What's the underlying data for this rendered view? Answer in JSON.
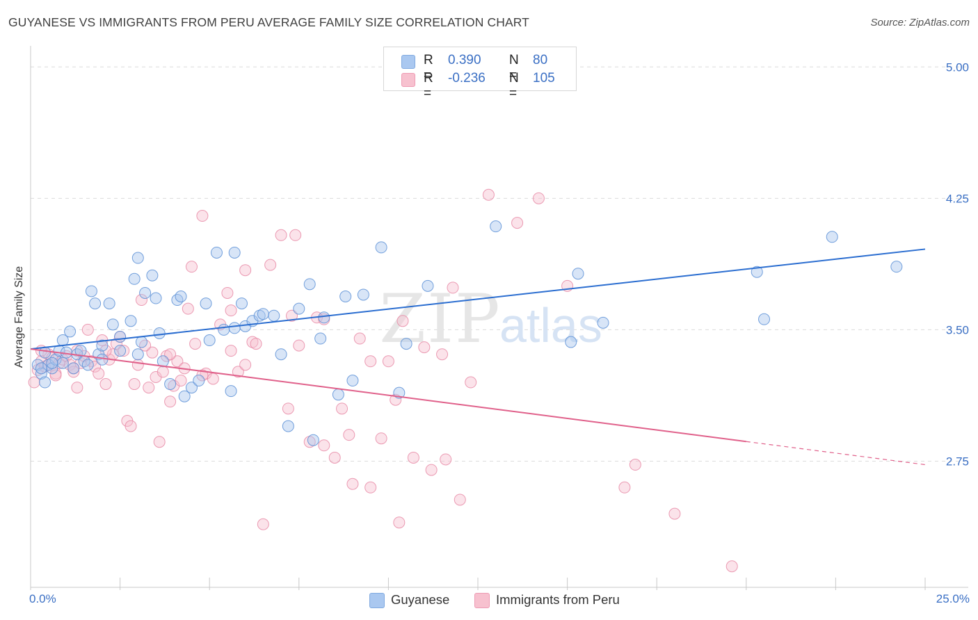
{
  "header": {
    "title": "GUYANESE VS IMMIGRANTS FROM PERU AVERAGE FAMILY SIZE CORRELATION CHART",
    "source": "Source: ZipAtlas.com"
  },
  "watermark": {
    "zip": "ZIP",
    "atlas": "atlas"
  },
  "legend": {
    "r_label": "R =",
    "n_label": "N =",
    "rows": [
      {
        "r": "0.390",
        "n": "80",
        "fill": "#aac8f0",
        "stroke": "#7fa9e0"
      },
      {
        "r": "-0.236",
        "n": "105",
        "fill": "#f7c1cf",
        "stroke": "#ee9ab3"
      }
    ]
  },
  "colors": {
    "blue": "#5b8fd6",
    "blue_fill": "#a9c6ee",
    "blue_line": "#2a6dd0",
    "pink": "#e88aa6",
    "pink_fill": "#f6c1d0",
    "pink_line": "#e0608a",
    "value_text": "#3a6fc4",
    "grid": "#dcdcdc"
  },
  "chart_data": {
    "type": "scatter",
    "title": "GUYANESE VS IMMIGRANTS FROM PERU AVERAGE FAMILY SIZE CORRELATION CHART",
    "ylabel": "Average Family Size",
    "xlabel": "",
    "xlim": [
      0,
      25
    ],
    "ylim": [
      2.03,
      5.12
    ],
    "x_tick_labels": [
      "0.0%",
      "25.0%"
    ],
    "y_ticks": [
      2.75,
      3.5,
      4.25,
      5.0
    ],
    "y_tick_labels": [
      "2.75",
      "3.50",
      "4.25",
      "5.00"
    ],
    "grid": true,
    "legend_position": "top-center",
    "series": [
      {
        "name": "Guyanese",
        "color": "#5b8fd6",
        "r": 0.39,
        "n": 80,
        "trend": {
          "x": [
            0,
            25
          ],
          "y": [
            3.39,
            3.96
          ]
        },
        "points": [
          [
            0.2,
            3.3
          ],
          [
            0.3,
            3.25
          ],
          [
            0.4,
            3.37
          ],
          [
            0.5,
            3.3
          ],
          [
            0.6,
            3.28
          ],
          [
            0.7,
            3.33
          ],
          [
            0.8,
            3.38
          ],
          [
            0.9,
            3.44
          ],
          [
            1.0,
            3.37
          ],
          [
            1.1,
            3.49
          ],
          [
            1.3,
            3.36
          ],
          [
            1.4,
            3.38
          ],
          [
            1.5,
            3.32
          ],
          [
            1.6,
            3.3
          ],
          [
            1.7,
            3.72
          ],
          [
            1.8,
            3.65
          ],
          [
            1.9,
            3.36
          ],
          [
            2.0,
            3.41
          ],
          [
            2.2,
            3.65
          ],
          [
            2.3,
            3.53
          ],
          [
            2.5,
            3.38
          ],
          [
            2.5,
            3.46
          ],
          [
            2.8,
            3.55
          ],
          [
            2.9,
            3.79
          ],
          [
            3.0,
            3.91
          ],
          [
            3.1,
            3.43
          ],
          [
            3.2,
            3.71
          ],
          [
            3.4,
            3.81
          ],
          [
            3.5,
            3.68
          ],
          [
            3.6,
            3.48
          ],
          [
            3.7,
            3.32
          ],
          [
            3.9,
            3.19
          ],
          [
            4.1,
            3.67
          ],
          [
            4.2,
            3.69
          ],
          [
            4.3,
            3.12
          ],
          [
            4.5,
            3.17
          ],
          [
            4.7,
            3.21
          ],
          [
            4.9,
            3.65
          ],
          [
            5.0,
            3.44
          ],
          [
            5.2,
            3.94
          ],
          [
            5.4,
            3.5
          ],
          [
            5.6,
            3.15
          ],
          [
            5.7,
            3.94
          ],
          [
            5.9,
            3.65
          ],
          [
            6.0,
            3.52
          ],
          [
            6.2,
            3.55
          ],
          [
            6.4,
            3.58
          ],
          [
            6.8,
            3.58
          ],
          [
            7.0,
            3.36
          ],
          [
            7.2,
            2.95
          ],
          [
            7.5,
            3.62
          ],
          [
            7.8,
            3.76
          ],
          [
            7.9,
            2.87
          ],
          [
            8.1,
            3.45
          ],
          [
            8.2,
            3.57
          ],
          [
            8.6,
            3.13
          ],
          [
            8.8,
            3.69
          ],
          [
            9.0,
            3.21
          ],
          [
            9.3,
            3.7
          ],
          [
            9.8,
            3.97
          ],
          [
            10.3,
            3.14
          ],
          [
            10.5,
            3.42
          ],
          [
            11.1,
            3.75
          ],
          [
            13.0,
            4.09
          ],
          [
            15.1,
            3.43
          ],
          [
            15.3,
            3.82
          ],
          [
            16.0,
            3.54
          ],
          [
            20.3,
            3.83
          ],
          [
            20.5,
            3.56
          ],
          [
            22.4,
            4.03
          ],
          [
            24.2,
            3.86
          ],
          [
            0.4,
            3.2
          ],
          [
            0.9,
            3.31
          ],
          [
            2.0,
            3.33
          ],
          [
            3.0,
            3.36
          ],
          [
            5.7,
            3.51
          ],
          [
            6.5,
            3.59
          ],
          [
            1.2,
            3.28
          ],
          [
            0.6,
            3.31
          ],
          [
            0.3,
            3.28
          ]
        ]
      },
      {
        "name": "Immigrants from Peru",
        "color": "#e88aa6",
        "r": -0.236,
        "n": 105,
        "trend": {
          "x": [
            0,
            25
          ],
          "y": [
            3.39,
            2.73
          ]
        },
        "points": [
          [
            0.1,
            3.2
          ],
          [
            0.2,
            3.27
          ],
          [
            0.3,
            3.32
          ],
          [
            0.4,
            3.29
          ],
          [
            0.5,
            3.36
          ],
          [
            0.6,
            3.34
          ],
          [
            0.7,
            3.25
          ],
          [
            0.8,
            3.31
          ],
          [
            0.9,
            3.33
          ],
          [
            1.0,
            3.35
          ],
          [
            1.1,
            3.3
          ],
          [
            1.2,
            3.26
          ],
          [
            1.3,
            3.38
          ],
          [
            1.4,
            3.31
          ],
          [
            1.5,
            3.35
          ],
          [
            1.6,
            3.5
          ],
          [
            1.7,
            3.32
          ],
          [
            1.8,
            3.29
          ],
          [
            1.9,
            3.25
          ],
          [
            2.0,
            3.44
          ],
          [
            2.1,
            3.19
          ],
          [
            2.2,
            3.33
          ],
          [
            2.3,
            3.36
          ],
          [
            2.4,
            3.42
          ],
          [
            2.6,
            3.38
          ],
          [
            2.7,
            2.98
          ],
          [
            2.8,
            2.95
          ],
          [
            2.9,
            3.19
          ],
          [
            3.0,
            3.3
          ],
          [
            3.1,
            3.67
          ],
          [
            3.3,
            3.17
          ],
          [
            3.4,
            3.37
          ],
          [
            3.5,
            3.23
          ],
          [
            3.6,
            2.86
          ],
          [
            3.7,
            3.26
          ],
          [
            3.8,
            3.35
          ],
          [
            3.9,
            3.09
          ],
          [
            4.0,
            3.18
          ],
          [
            4.1,
            3.32
          ],
          [
            4.2,
            3.21
          ],
          [
            4.3,
            3.28
          ],
          [
            4.4,
            3.62
          ],
          [
            4.5,
            3.86
          ],
          [
            4.6,
            3.42
          ],
          [
            4.8,
            4.15
          ],
          [
            4.9,
            3.25
          ],
          [
            5.1,
            3.22
          ],
          [
            5.3,
            3.53
          ],
          [
            5.5,
            3.71
          ],
          [
            5.6,
            3.38
          ],
          [
            5.8,
            3.26
          ],
          [
            6.0,
            3.3
          ],
          [
            6.2,
            3.43
          ],
          [
            6.3,
            3.42
          ],
          [
            6.5,
            2.39
          ],
          [
            6.7,
            3.87
          ],
          [
            7.0,
            4.04
          ],
          [
            7.2,
            3.05
          ],
          [
            7.4,
            4.04
          ],
          [
            7.5,
            3.41
          ],
          [
            7.8,
            2.86
          ],
          [
            8.0,
            3.57
          ],
          [
            8.2,
            3.56
          ],
          [
            8.5,
            2.77
          ],
          [
            8.7,
            3.05
          ],
          [
            8.9,
            2.9
          ],
          [
            9.0,
            2.62
          ],
          [
            9.2,
            3.45
          ],
          [
            9.5,
            2.6
          ],
          [
            9.8,
            2.88
          ],
          [
            10.0,
            3.32
          ],
          [
            10.2,
            3.1
          ],
          [
            10.4,
            3.55
          ],
          [
            10.7,
            2.77
          ],
          [
            11.0,
            3.4
          ],
          [
            11.2,
            2.7
          ],
          [
            11.5,
            3.36
          ],
          [
            11.8,
            3.74
          ],
          [
            12.0,
            2.53
          ],
          [
            12.3,
            3.2
          ],
          [
            12.8,
            4.27
          ],
          [
            13.6,
            4.11
          ],
          [
            14.2,
            4.25
          ],
          [
            15.0,
            3.75
          ],
          [
            16.6,
            2.6
          ],
          [
            16.9,
            2.73
          ],
          [
            18.0,
            2.45
          ],
          [
            19.6,
            2.15
          ],
          [
            10.3,
            2.4
          ],
          [
            9.5,
            3.32
          ],
          [
            7.3,
            3.58
          ],
          [
            6.0,
            3.84
          ],
          [
            4.8,
            3.24
          ],
          [
            3.9,
            3.36
          ],
          [
            2.5,
            3.46
          ],
          [
            1.3,
            3.17
          ],
          [
            0.7,
            3.24
          ],
          [
            0.3,
            3.38
          ],
          [
            11.6,
            2.76
          ],
          [
            8.2,
            2.84
          ],
          [
            5.6,
            3.61
          ],
          [
            3.2,
            3.41
          ],
          [
            2.1,
            3.38
          ],
          [
            1.2,
            3.28
          ],
          [
            0.5,
            3.3
          ]
        ]
      }
    ]
  }
}
